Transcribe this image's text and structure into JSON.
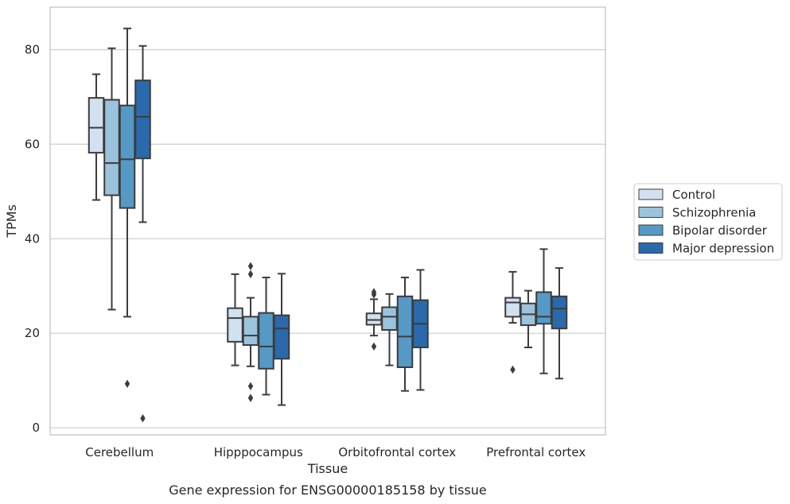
{
  "chart_data": {
    "type": "box",
    "xlabel": "Tissue",
    "ylabel": "TPMs",
    "caption": "Gene expression for ENSG00000185158 by tissue",
    "ylim": [
      -1.5,
      89
    ],
    "yticks": [
      0,
      20,
      40,
      60,
      80
    ],
    "grid": true,
    "legend_position": "right",
    "categories": [
      "Cerebellum",
      "Hipppocampus",
      "Orbitofrontal cortex",
      "Prefrontal cortex"
    ],
    "series": [
      {
        "name": "Control",
        "color": "#d2e1f0",
        "boxes": [
          {
            "whisker_low": 48.2,
            "q1": 58.2,
            "median": 63.5,
            "q3": 69.8,
            "whisker_high": 74.8,
            "outliers": []
          },
          {
            "whisker_low": 13.2,
            "q1": 18.2,
            "median": 23.2,
            "q3": 25.3,
            "whisker_high": 32.5,
            "outliers": []
          },
          {
            "whisker_low": 19.5,
            "q1": 21.8,
            "median": 22.8,
            "q3": 24.2,
            "whisker_high": 27.2,
            "outliers": [
              17.2,
              28.2,
              28.7
            ]
          },
          {
            "whisker_low": 22.2,
            "q1": 23.5,
            "median": 26.5,
            "q3": 27.5,
            "whisker_high": 33.0,
            "outliers": [
              12.3
            ]
          }
        ]
      },
      {
        "name": "Schizophrenia",
        "color": "#9bc3dd",
        "boxes": [
          {
            "whisker_low": 25.0,
            "q1": 49.2,
            "median": 56.0,
            "q3": 69.4,
            "whisker_high": 80.3,
            "outliers": []
          },
          {
            "whisker_low": 13.0,
            "q1": 17.5,
            "median": 19.5,
            "q3": 23.5,
            "whisker_high": 27.5,
            "outliers": [
              6.3,
              8.8,
              32.5,
              34.2
            ]
          },
          {
            "whisker_low": 13.2,
            "q1": 20.7,
            "median": 23.5,
            "q3": 25.5,
            "whisker_high": 28.3,
            "outliers": []
          },
          {
            "whisker_low": 17.0,
            "q1": 21.7,
            "median": 24.0,
            "q3": 26.3,
            "whisker_high": 29.0,
            "outliers": []
          }
        ]
      },
      {
        "name": "Bipolar disorder",
        "color": "#5599c6",
        "boxes": [
          {
            "whisker_low": 23.5,
            "q1": 46.5,
            "median": 56.8,
            "q3": 68.2,
            "whisker_high": 84.5,
            "outliers": [
              9.3
            ]
          },
          {
            "whisker_low": 7.0,
            "q1": 12.5,
            "median": 17.2,
            "q3": 24.3,
            "whisker_high": 31.8,
            "outliers": []
          },
          {
            "whisker_low": 7.8,
            "q1": 12.8,
            "median": 19.3,
            "q3": 27.8,
            "whisker_high": 31.8,
            "outliers": []
          },
          {
            "whisker_low": 11.5,
            "q1": 22.0,
            "median": 23.5,
            "q3": 28.7,
            "whisker_high": 37.8,
            "outliers": []
          }
        ]
      },
      {
        "name": "Major depression",
        "color": "#2a6aac",
        "boxes": [
          {
            "whisker_low": 43.5,
            "q1": 57.0,
            "median": 65.8,
            "q3": 73.5,
            "whisker_high": 80.8,
            "outliers": [
              2.0
            ]
          },
          {
            "whisker_low": 4.8,
            "q1": 14.6,
            "median": 21.0,
            "q3": 23.8,
            "whisker_high": 32.6,
            "outliers": []
          },
          {
            "whisker_low": 8.0,
            "q1": 17.0,
            "median": 22.0,
            "q3": 27.0,
            "whisker_high": 33.4,
            "outliers": []
          },
          {
            "whisker_low": 10.4,
            "q1": 21.0,
            "median": 25.2,
            "q3": 27.8,
            "whisker_high": 33.8,
            "outliers": []
          }
        ]
      }
    ]
  }
}
